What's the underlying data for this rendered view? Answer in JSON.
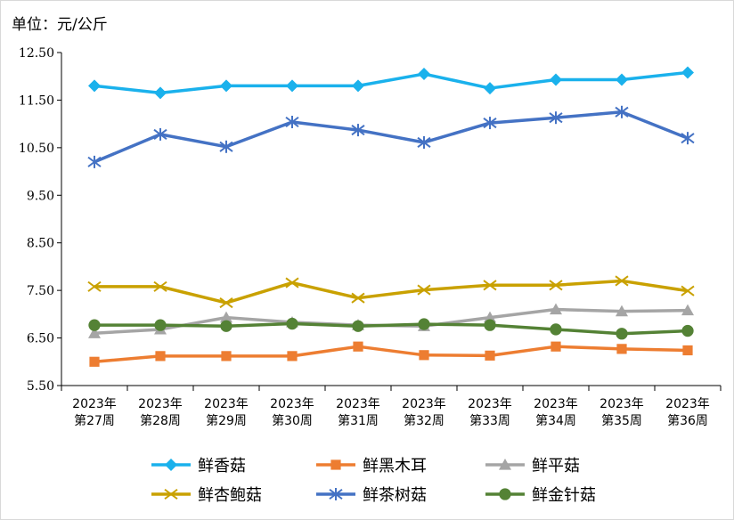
{
  "chart_data": {
    "type": "line",
    "unit_label": "单位：元/公斤",
    "categories": [
      [
        "2023年",
        "第27周"
      ],
      [
        "2023年",
        "第28周"
      ],
      [
        "2023年",
        "第29周"
      ],
      [
        "2023年",
        "第30周"
      ],
      [
        "2023年",
        "第31周"
      ],
      [
        "2023年",
        "第32周"
      ],
      [
        "2023年",
        "第33周"
      ],
      [
        "2023年",
        "第34周"
      ],
      [
        "2023年",
        "第35周"
      ],
      [
        "2023年",
        "第36周"
      ]
    ],
    "y_ticks": [
      "5.50",
      "6.50",
      "7.50",
      "8.50",
      "9.50",
      "10.50",
      "11.50",
      "12.50"
    ],
    "ylim": [
      5.5,
      12.5
    ],
    "grid": false,
    "legend_position": "bottom",
    "series": [
      {
        "name": "鲜香菇",
        "color": "#1ab1ec",
        "marker": "diamond",
        "values": [
          11.8,
          11.65,
          11.8,
          11.8,
          11.8,
          12.05,
          11.75,
          11.93,
          11.93,
          12.08
        ]
      },
      {
        "name": "鲜黑木耳",
        "color": "#ed7d31",
        "marker": "square",
        "values": [
          6.0,
          6.12,
          6.12,
          6.12,
          6.32,
          6.14,
          6.13,
          6.32,
          6.27,
          6.24
        ]
      },
      {
        "name": "鲜平菇",
        "color": "#a5a5a5",
        "marker": "triangle",
        "values": [
          6.6,
          6.68,
          6.93,
          6.83,
          6.77,
          6.75,
          6.93,
          7.1,
          7.06,
          7.08
        ]
      },
      {
        "name": "鲜杏鲍菇",
        "color": "#c9a100",
        "marker": "x",
        "values": [
          7.58,
          7.58,
          7.24,
          7.66,
          7.34,
          7.51,
          7.61,
          7.61,
          7.7,
          7.49
        ]
      },
      {
        "name": "鲜茶树菇",
        "color": "#4472c4",
        "marker": "star",
        "values": [
          10.2,
          10.78,
          10.52,
          11.04,
          10.87,
          10.61,
          11.02,
          11.13,
          11.25,
          10.7
        ]
      },
      {
        "name": "鲜金针菇",
        "color": "#548235",
        "marker": "circle",
        "values": [
          6.77,
          6.77,
          6.75,
          6.8,
          6.75,
          6.79,
          6.77,
          6.68,
          6.59,
          6.65
        ]
      }
    ]
  }
}
